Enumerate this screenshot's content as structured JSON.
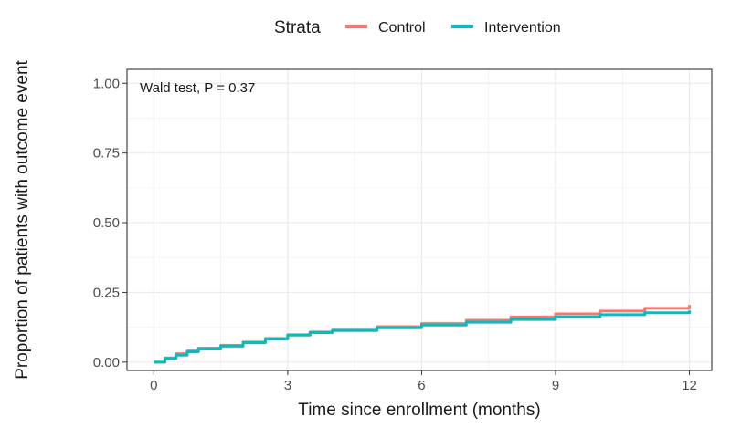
{
  "chart_data": {
    "type": "line",
    "step": true,
    "xlabel": "Time since enrollment (months)",
    "ylabel": "Proportion of patients with outcome event",
    "xlim": [
      -0.6,
      12.5
    ],
    "ylim": [
      -0.03,
      1.05
    ],
    "x_ticks": [
      0,
      3,
      6,
      9,
      12
    ],
    "x_tick_labels": [
      "0",
      "3",
      "6",
      "9",
      "12"
    ],
    "y_ticks": [
      0,
      0.25,
      0.5,
      0.75,
      1.0
    ],
    "y_tick_labels": [
      "0.00",
      "0.25",
      "0.50",
      "0.75",
      "1.00"
    ],
    "grid": true,
    "legend": {
      "title": "Strata",
      "position": "top",
      "entries": [
        {
          "label": "Control",
          "color": "#F8766D"
        },
        {
          "label": "Intervention",
          "color": "#00BFC4"
        }
      ]
    },
    "annotation": "Wald test, P = 0.37",
    "series": [
      {
        "name": "Control",
        "color": "#F8766D",
        "x": [
          0,
          0.25,
          0.5,
          0.75,
          1.0,
          1.5,
          2.0,
          2.5,
          3.0,
          3.5,
          4.0,
          5.0,
          6.0,
          7.0,
          8.0,
          9.0,
          10.0,
          11.0,
          12.0
        ],
        "y": [
          0,
          0.015,
          0.03,
          0.04,
          0.05,
          0.06,
          0.072,
          0.085,
          0.098,
          0.108,
          0.115,
          0.127,
          0.138,
          0.15,
          0.162,
          0.173,
          0.183,
          0.193,
          0.205
        ]
      },
      {
        "name": "Intervention",
        "color": "#00BFC4",
        "x": [
          0,
          0.25,
          0.5,
          0.75,
          1.0,
          1.5,
          2.0,
          2.5,
          3.0,
          3.5,
          4.0,
          5.0,
          6.0,
          7.0,
          8.0,
          9.0,
          10.0,
          11.0,
          12.0
        ],
        "y": [
          0,
          0.013,
          0.025,
          0.037,
          0.047,
          0.057,
          0.07,
          0.083,
          0.097,
          0.106,
          0.113,
          0.123,
          0.133,
          0.143,
          0.153,
          0.162,
          0.17,
          0.177,
          0.185
        ]
      }
    ]
  }
}
